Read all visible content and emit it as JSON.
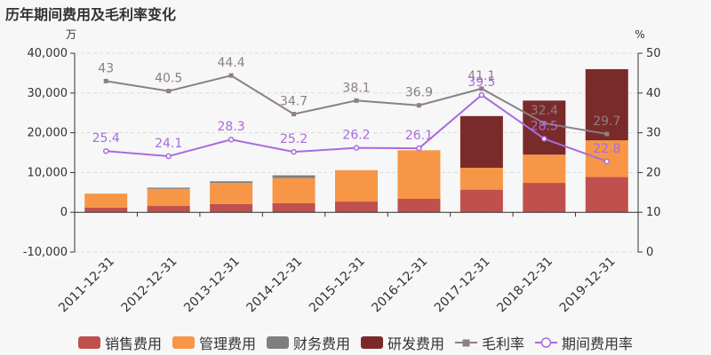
{
  "title": "历年期间费用及毛利率变化",
  "chart_data": {
    "type": "bar+line",
    "title": "历年期间费用及毛利率变化",
    "categories": [
      "2011-12-31",
      "2012-12-31",
      "2013-12-31",
      "2014-12-31",
      "2015-12-31",
      "2016-12-31",
      "2017-12-31",
      "2018-12-31",
      "2019-12-31"
    ],
    "left_axis": {
      "unit": "万",
      "min": -10000,
      "max": 40000,
      "step": 10000,
      "ticks": [
        "-10,000",
        "0",
        "10,000",
        "20,000",
        "30,000",
        "40,000"
      ]
    },
    "right_axis": {
      "unit": "%",
      "min": 0,
      "max": 50,
      "step": 10,
      "ticks": [
        "0",
        "10",
        "20",
        "30",
        "40",
        "50"
      ]
    },
    "bar_series": [
      {
        "name": "销售费用",
        "color": "#c0504d",
        "values": [
          1200,
          1600,
          2100,
          2300,
          2700,
          3400,
          5700,
          7400,
          8900
        ]
      },
      {
        "name": "管理费用",
        "color": "#f79646",
        "values": [
          3500,
          4300,
          5300,
          6300,
          7900,
          12200,
          5500,
          7100,
          9200
        ]
      },
      {
        "name": "财务费用",
        "color": "#7f7f7f",
        "values": [
          0,
          300,
          400,
          700,
          0,
          0,
          0,
          0,
          0
        ]
      },
      {
        "name": "研发费用",
        "color": "#7b2a2a",
        "values": [
          0,
          0,
          0,
          0,
          0,
          0,
          13000,
          13600,
          17900
        ]
      }
    ],
    "line_series": [
      {
        "name": "毛利率",
        "color": "#8c7f88",
        "marker": "square",
        "values": [
          43,
          40.5,
          44.4,
          34.7,
          38.1,
          36.9,
          41.1,
          32.4,
          29.7
        ]
      },
      {
        "name": "期间费用率",
        "color": "#a86bdc",
        "marker": "circle",
        "values": [
          25.4,
          24.1,
          28.3,
          25.2,
          26.2,
          26.1,
          39.5,
          28.5,
          22.8
        ]
      }
    ],
    "legend_position": "bottom",
    "grid": true
  }
}
